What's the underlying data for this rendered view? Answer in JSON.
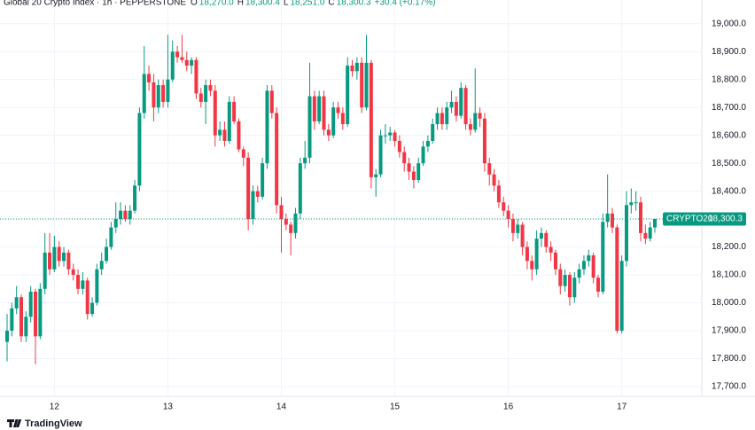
{
  "chart_data": {
    "type": "candlestick",
    "title": "Global 20 Crypto Index · 1h · PEPPERSTONE",
    "legend_values": [
      {
        "name": "O",
        "text": "18,270.0"
      },
      {
        "name": "H",
        "text": "18,300.4"
      },
      {
        "name": "L",
        "text": "18,251.0"
      },
      {
        "name": "C",
        "text": "18,300.3"
      }
    ],
    "change": "+30.4 (+0.17%)",
    "up_color": "#089981",
    "down_color": "#f23645",
    "grid": true,
    "price_line": {
      "symbol": "CRYPTO20",
      "price": {
        "value": 18300.3,
        "label": "18,300.3"
      },
      "color": "#089981"
    },
    "brand": "TradingView",
    "ylim": [
      17665,
      19085
    ],
    "yticks": [
      {
        "value": 17700,
        "label": "17,700.0"
      },
      {
        "value": 17800,
        "label": "17,800.0"
      },
      {
        "value": 17900,
        "label": "17,900.0"
      },
      {
        "value": 18000,
        "label": "18,000.0"
      },
      {
        "value": 18100,
        "label": "18,100.0"
      },
      {
        "value": 18200,
        "label": "18,200.0"
      },
      {
        "value": 18300,
        "label": "18,300.0"
      },
      {
        "value": 18400,
        "label": "18,400.0"
      },
      {
        "value": 18500,
        "label": "18,500.0"
      },
      {
        "value": 18600,
        "label": "18,600.0"
      },
      {
        "value": 18700,
        "label": "18,700.0"
      },
      {
        "value": 18800,
        "label": "18,800.0"
      },
      {
        "value": 18900,
        "label": "18,900.0"
      },
      {
        "value": 19000,
        "label": "19,000.0"
      }
    ],
    "categories": [
      null,
      null,
      null,
      null,
      null,
      null,
      null,
      null,
      null,
      null,
      "12",
      null,
      null,
      null,
      null,
      null,
      null,
      null,
      null,
      null,
      null,
      null,
      null,
      null,
      null,
      null,
      null,
      null,
      null,
      null,
      null,
      null,
      null,
      null,
      "13",
      null,
      null,
      null,
      null,
      null,
      null,
      null,
      null,
      null,
      null,
      null,
      null,
      null,
      null,
      null,
      null,
      null,
      null,
      null,
      null,
      null,
      null,
      null,
      "14",
      null,
      null,
      null,
      null,
      null,
      null,
      null,
      null,
      null,
      null,
      null,
      null,
      null,
      null,
      null,
      null,
      null,
      null,
      null,
      null,
      null,
      null,
      null,
      "15",
      null,
      null,
      null,
      null,
      null,
      null,
      null,
      null,
      null,
      null,
      null,
      null,
      null,
      null,
      null,
      null,
      null,
      null,
      null,
      null,
      null,
      null,
      null,
      "16",
      null,
      null,
      null,
      null,
      null,
      null,
      null,
      null,
      null,
      null,
      null,
      null,
      null,
      null,
      null,
      null,
      null,
      null,
      null,
      null,
      null,
      null,
      null,
      "17",
      null,
      null,
      null,
      null,
      null,
      null,
      null
    ],
    "ohlc": [
      [
        17860,
        17960,
        17790,
        17900
      ],
      [
        17900,
        18000,
        17880,
        17980
      ],
      [
        17980,
        18060,
        17960,
        18020
      ],
      [
        18020,
        18030,
        17860,
        17880
      ],
      [
        17880,
        17970,
        17860,
        17950
      ],
      [
        17950,
        18060,
        17930,
        18040
      ],
      [
        18040,
        18050,
        17780,
        17880
      ],
      [
        17880,
        18070,
        17870,
        18050
      ],
      [
        18050,
        18250,
        18030,
        18180
      ],
      [
        18180,
        18250,
        18100,
        18120
      ],
      [
        18120,
        18240,
        18110,
        18200
      ],
      [
        18200,
        18220,
        18130,
        18150
      ],
      [
        18150,
        18200,
        18130,
        18180
      ],
      [
        18180,
        18190,
        18100,
        18120
      ],
      [
        18120,
        18140,
        18080,
        18100
      ],
      [
        18100,
        18120,
        18030,
        18050
      ],
      [
        18050,
        18110,
        18030,
        18080
      ],
      [
        18080,
        18090,
        17940,
        17960
      ],
      [
        17960,
        18020,
        17950,
        18000
      ],
      [
        18000,
        18140,
        17990,
        18120
      ],
      [
        18120,
        18180,
        18100,
        18150
      ],
      [
        18150,
        18230,
        18140,
        18200
      ],
      [
        18200,
        18290,
        18190,
        18270
      ],
      [
        18270,
        18360,
        18250,
        18300
      ],
      [
        18300,
        18360,
        18280,
        18330
      ],
      [
        18330,
        18350,
        18290,
        18300
      ],
      [
        18300,
        18350,
        18280,
        18330
      ],
      [
        18330,
        18440,
        18320,
        18420
      ],
      [
        18420,
        18700,
        18400,
        18680
      ],
      [
        18680,
        18920,
        18660,
        18820
      ],
      [
        18820,
        18850,
        18760,
        18790
      ],
      [
        18790,
        18820,
        18650,
        18700
      ],
      [
        18700,
        18800,
        18680,
        18780
      ],
      [
        18780,
        18800,
        18700,
        18720
      ],
      [
        18720,
        18960,
        18700,
        18800
      ],
      [
        18800,
        18940,
        18790,
        18900
      ],
      [
        18900,
        18920,
        18860,
        18880
      ],
      [
        18880,
        18960,
        18860,
        18870
      ],
      [
        18870,
        18900,
        18830,
        18850
      ],
      [
        18850,
        18880,
        18820,
        18870
      ],
      [
        18870,
        18880,
        18730,
        18750
      ],
      [
        18750,
        18770,
        18700,
        18720
      ],
      [
        18720,
        18800,
        18640,
        18780
      ],
      [
        18780,
        18800,
        18740,
        18760
      ],
      [
        18760,
        18780,
        18560,
        18600
      ],
      [
        18600,
        18650,
        18580,
        18620
      ],
      [
        18620,
        18650,
        18560,
        18580
      ],
      [
        18580,
        18740,
        18570,
        18720
      ],
      [
        18720,
        18740,
        18640,
        18650
      ],
      [
        18650,
        18660,
        18540,
        18550
      ],
      [
        18550,
        18560,
        18490,
        18520
      ],
      [
        18520,
        18540,
        18260,
        18300
      ],
      [
        18300,
        18420,
        18280,
        18400
      ],
      [
        18400,
        18420,
        18360,
        18380
      ],
      [
        18380,
        18520,
        18370,
        18500
      ],
      [
        18500,
        18780,
        18480,
        18760
      ],
      [
        18760,
        18780,
        18660,
        18680
      ],
      [
        18680,
        18700,
        18320,
        18350
      ],
      [
        18350,
        18380,
        18180,
        18300
      ],
      [
        18300,
        18320,
        18260,
        18280
      ],
      [
        18280,
        18290,
        18170,
        18250
      ],
      [
        18250,
        18340,
        18230,
        18320
      ],
      [
        18320,
        18520,
        18300,
        18500
      ],
      [
        18500,
        18580,
        18480,
        18520
      ],
      [
        18520,
        18860,
        18500,
        18740
      ],
      [
        18740,
        18760,
        18620,
        18650
      ],
      [
        18650,
        18760,
        18640,
        18740
      ],
      [
        18740,
        18760,
        18600,
        18620
      ],
      [
        18620,
        18640,
        18580,
        18600
      ],
      [
        18600,
        18720,
        18590,
        18700
      ],
      [
        18700,
        18720,
        18660,
        18680
      ],
      [
        18680,
        18700,
        18620,
        18640
      ],
      [
        18640,
        18880,
        18630,
        18850
      ],
      [
        18850,
        18870,
        18810,
        18830
      ],
      [
        18830,
        18880,
        18800,
        18860
      ],
      [
        18860,
        18880,
        18680,
        18700
      ],
      [
        18700,
        18960,
        18690,
        18860
      ],
      [
        18860,
        18870,
        18410,
        18450
      ],
      [
        18450,
        18480,
        18380,
        18460
      ],
      [
        18460,
        18620,
        18450,
        18600
      ],
      [
        18600,
        18640,
        18570,
        18600
      ],
      [
        18600,
        18630,
        18580,
        18610
      ],
      [
        18610,
        18620,
        18560,
        18580
      ],
      [
        18580,
        18600,
        18520,
        18540
      ],
      [
        18540,
        18560,
        18470,
        18500
      ],
      [
        18500,
        18520,
        18440,
        18470
      ],
      [
        18470,
        18490,
        18410,
        18440
      ],
      [
        18440,
        18520,
        18430,
        18500
      ],
      [
        18500,
        18580,
        18490,
        18560
      ],
      [
        18560,
        18600,
        18540,
        18580
      ],
      [
        18580,
        18660,
        18570,
        18640
      ],
      [
        18640,
        18700,
        18620,
        18680
      ],
      [
        18680,
        18700,
        18620,
        18640
      ],
      [
        18640,
        18720,
        18620,
        18700
      ],
      [
        18700,
        18760,
        18680,
        18720
      ],
      [
        18720,
        18740,
        18650,
        18670
      ],
      [
        18670,
        18790,
        18660,
        18770
      ],
      [
        18770,
        18780,
        18620,
        18640
      ],
      [
        18640,
        18660,
        18600,
        18620
      ],
      [
        18620,
        18840,
        18610,
        18680
      ],
      [
        18680,
        18700,
        18630,
        18660
      ],
      [
        18660,
        18680,
        18470,
        18500
      ],
      [
        18500,
        18520,
        18420,
        18460
      ],
      [
        18460,
        18480,
        18400,
        18420
      ],
      [
        18420,
        18440,
        18340,
        18360
      ],
      [
        18360,
        18380,
        18310,
        18330
      ],
      [
        18330,
        18350,
        18270,
        18300
      ],
      [
        18300,
        18320,
        18220,
        18250
      ],
      [
        18250,
        18300,
        18230,
        18280
      ],
      [
        18280,
        18290,
        18170,
        18200
      ],
      [
        18200,
        18220,
        18120,
        18150
      ],
      [
        18150,
        18170,
        18080,
        18120
      ],
      [
        18120,
        18260,
        18100,
        18230
      ],
      [
        18230,
        18270,
        18200,
        18250
      ],
      [
        18250,
        18260,
        18180,
        18200
      ],
      [
        18200,
        18220,
        18150,
        18180
      ],
      [
        18180,
        18190,
        18100,
        18120
      ],
      [
        18120,
        18140,
        18030,
        18060
      ],
      [
        18060,
        18120,
        18040,
        18100
      ],
      [
        18100,
        18110,
        17990,
        18020
      ],
      [
        18020,
        18110,
        18000,
        18090
      ],
      [
        18090,
        18140,
        18070,
        18120
      ],
      [
        18120,
        18170,
        18100,
        18150
      ],
      [
        18150,
        18190,
        18130,
        18170
      ],
      [
        18170,
        18180,
        18070,
        18090
      ],
      [
        18090,
        18100,
        18020,
        18040
      ],
      [
        18040,
        18320,
        18030,
        18290
      ],
      [
        18290,
        18460,
        18270,
        18320
      ],
      [
        18320,
        18340,
        18250,
        18270
      ],
      [
        18270,
        18280,
        17890,
        17900
      ],
      [
        17900,
        18170,
        17890,
        18150
      ],
      [
        18150,
        18400,
        18130,
        18350
      ],
      [
        18350,
        18410,
        18320,
        18360
      ],
      [
        18360,
        18400,
        18330,
        18360
      ],
      [
        18360,
        18380,
        18220,
        18250
      ],
      [
        18250,
        18280,
        18210,
        18230
      ],
      [
        18230,
        18290,
        18220,
        18270
      ],
      [
        18270.0,
        18300.4,
        18251.0,
        18300.3
      ]
    ]
  }
}
